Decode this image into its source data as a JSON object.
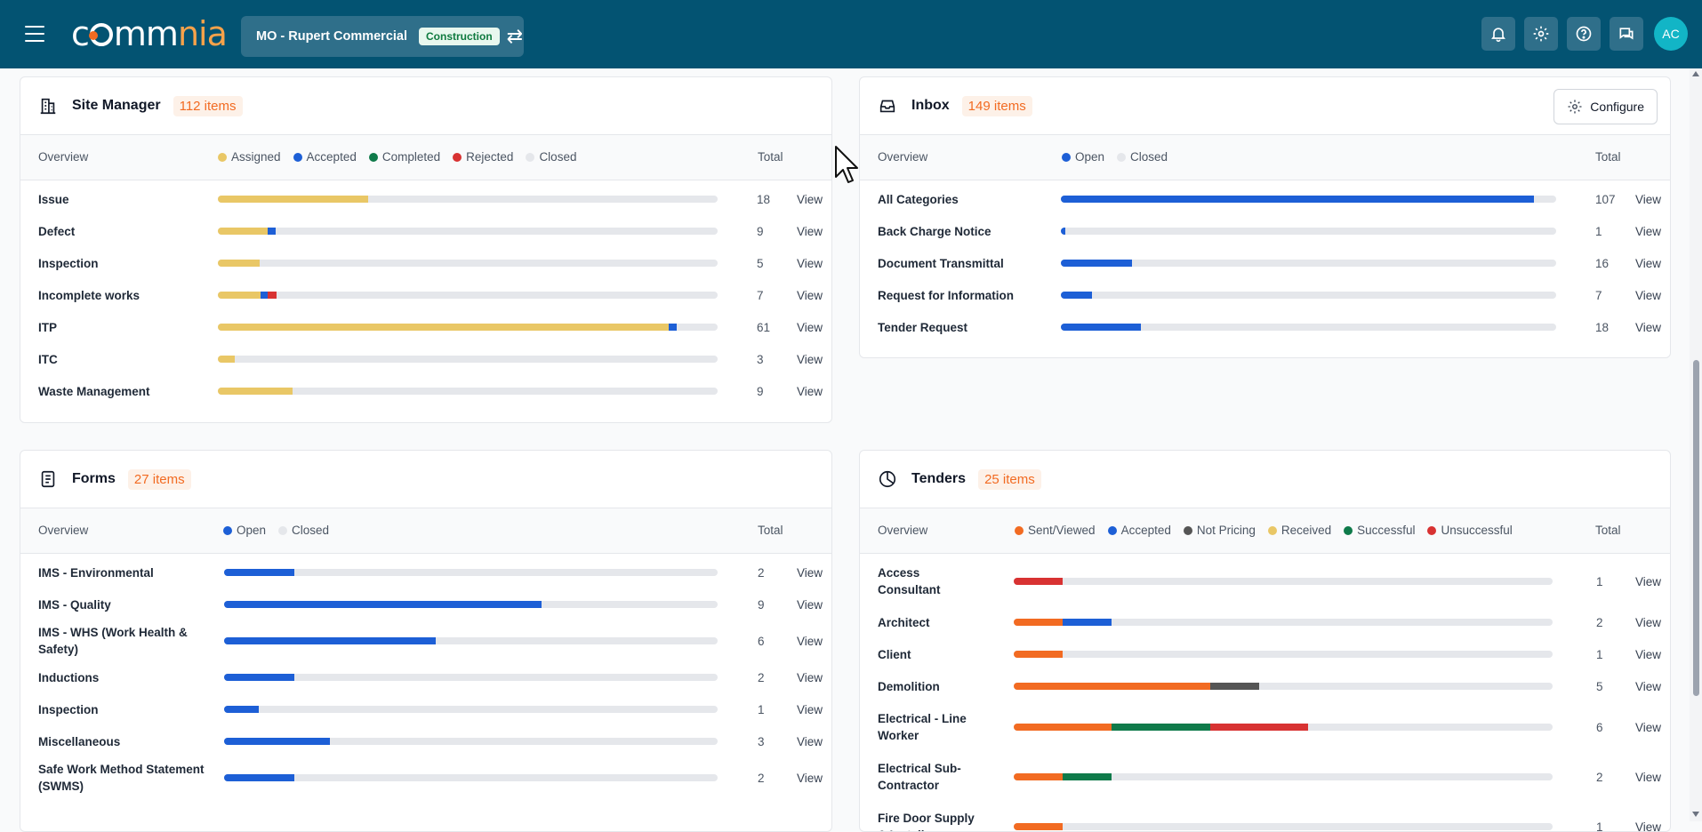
{
  "header": {
    "logo_text": "commnia",
    "project_name": "MO - Rupert Commercial",
    "project_badge": "Construction",
    "avatar_initials": "AC"
  },
  "colors": {
    "topbar": "#035372",
    "orange": "#f26b22",
    "yellow": "#e9c766",
    "blue": "#1d5fd6",
    "green": "#0f7a4a",
    "red": "#d83232",
    "grey": "#e5e7eb",
    "dark_grey": "#555555"
  },
  "site_manager": {
    "title": "Site Manager",
    "count": "112 items",
    "overview_label": "Overview",
    "total_label": "Total",
    "legend": [
      {
        "label": "Assigned",
        "color": "#e9c766"
      },
      {
        "label": "Accepted",
        "color": "#1d5fd6"
      },
      {
        "label": "Completed",
        "color": "#0f7a4a"
      },
      {
        "label": "Rejected",
        "color": "#d83232"
      },
      {
        "label": "Closed",
        "color": "#e5e7eb"
      }
    ],
    "rows": [
      {
        "label": "Issue",
        "total": "18",
        "view": "View",
        "segments": [
          {
            "color": "#e9c766",
            "pct": 30
          }
        ]
      },
      {
        "label": "Defect",
        "total": "9",
        "view": "View",
        "segments": [
          {
            "color": "#e9c766",
            "pct": 10
          },
          {
            "color": "#1d5fd6",
            "pct": 1.5
          }
        ]
      },
      {
        "label": "Inspection",
        "total": "5",
        "view": "View",
        "segments": [
          {
            "color": "#e9c766",
            "pct": 8.3
          }
        ]
      },
      {
        "label": "Incomplete works",
        "total": "7",
        "view": "View",
        "segments": [
          {
            "color": "#e9c766",
            "pct": 8.5
          },
          {
            "color": "#1d5fd6",
            "pct": 1.5
          },
          {
            "color": "#d83232",
            "pct": 1.7
          }
        ]
      },
      {
        "label": "ITP",
        "total": "61",
        "view": "View",
        "segments": [
          {
            "color": "#e9c766",
            "pct": 90.2
          },
          {
            "color": "#1d5fd6",
            "pct": 1.6
          }
        ]
      },
      {
        "label": "ITC",
        "total": "3",
        "view": "View",
        "segments": [
          {
            "color": "#e9c766",
            "pct": 3.4
          }
        ]
      },
      {
        "label": "Waste Management",
        "total": "9",
        "view": "View",
        "segments": [
          {
            "color": "#e9c766",
            "pct": 15
          }
        ]
      }
    ]
  },
  "inbox": {
    "title": "Inbox",
    "count": "149 items",
    "configure_label": "Configure",
    "overview_label": "Overview",
    "total_label": "Total",
    "legend": [
      {
        "label": "Open",
        "color": "#1d5fd6"
      },
      {
        "label": "Closed",
        "color": "#e5e7eb"
      }
    ],
    "rows": [
      {
        "label": "All Categories",
        "total": "107",
        "view": "View",
        "segments": [
          {
            "color": "#1d5fd6",
            "pct": 95.5
          }
        ]
      },
      {
        "label": "Back Charge Notice",
        "total": "1",
        "view": "View",
        "segments": [
          {
            "color": "#1d5fd6",
            "pct": 0.9
          }
        ]
      },
      {
        "label": "Document Transmittal",
        "total": "16",
        "view": "View",
        "segments": [
          {
            "color": "#1d5fd6",
            "pct": 14.4
          }
        ]
      },
      {
        "label": "Request for Information",
        "total": "7",
        "view": "View",
        "segments": [
          {
            "color": "#1d5fd6",
            "pct": 6.3
          }
        ]
      },
      {
        "label": "Tender Request",
        "total": "18",
        "view": "View",
        "segments": [
          {
            "color": "#1d5fd6",
            "pct": 16.2
          }
        ]
      }
    ]
  },
  "forms": {
    "title": "Forms",
    "count": "27 items",
    "overview_label": "Overview",
    "total_label": "Total",
    "legend": [
      {
        "label": "Open",
        "color": "#1d5fd6"
      },
      {
        "label": "Closed",
        "color": "#e5e7eb"
      }
    ],
    "rows": [
      {
        "label": "IMS - Environmental",
        "total": "2",
        "view": "View",
        "segments": [
          {
            "color": "#1d5fd6",
            "pct": 14.3
          }
        ]
      },
      {
        "label": "IMS - Quality",
        "total": "9",
        "view": "View",
        "segments": [
          {
            "color": "#1d5fd6",
            "pct": 64.3
          }
        ]
      },
      {
        "label": "IMS - WHS (Work Health & Safety)",
        "total": "6",
        "view": "View",
        "segments": [
          {
            "color": "#1d5fd6",
            "pct": 42.9
          }
        ]
      },
      {
        "label": "Inductions",
        "total": "2",
        "view": "View",
        "segments": [
          {
            "color": "#1d5fd6",
            "pct": 14.3
          }
        ]
      },
      {
        "label": "Inspection",
        "total": "1",
        "view": "View",
        "segments": [
          {
            "color": "#1d5fd6",
            "pct": 7.1
          }
        ]
      },
      {
        "label": "Miscellaneous",
        "total": "3",
        "view": "View",
        "segments": [
          {
            "color": "#1d5fd6",
            "pct": 21.4
          }
        ]
      },
      {
        "label": "Safe Work Method Statement (SWMS)",
        "total": "2",
        "view": "View",
        "segments": [
          {
            "color": "#1d5fd6",
            "pct": 14.3
          }
        ]
      }
    ]
  },
  "tenders": {
    "title": "Tenders",
    "count": "25 items",
    "overview_label": "Overview",
    "total_label": "Total",
    "legend": [
      {
        "label": "Sent/Viewed",
        "color": "#f26b22"
      },
      {
        "label": "Accepted",
        "color": "#1d5fd6"
      },
      {
        "label": "Not Pricing",
        "color": "#555555"
      },
      {
        "label": "Received",
        "color": "#e9c766"
      },
      {
        "label": "Successful",
        "color": "#0f7a4a"
      },
      {
        "label": "Unsuccessful",
        "color": "#d83232"
      }
    ],
    "rows": [
      {
        "label": "Access Consultant",
        "total": "1",
        "view": "View",
        "segments": [
          {
            "color": "#d83232",
            "pct": 9.1
          }
        ]
      },
      {
        "label": "Architect",
        "total": "2",
        "view": "View",
        "segments": [
          {
            "color": "#f26b22",
            "pct": 9.1
          },
          {
            "color": "#1d5fd6",
            "pct": 9.1
          }
        ]
      },
      {
        "label": "Client",
        "total": "1",
        "view": "View",
        "segments": [
          {
            "color": "#f26b22",
            "pct": 9.1
          }
        ]
      },
      {
        "label": "Demolition",
        "total": "5",
        "view": "View",
        "segments": [
          {
            "color": "#f26b22",
            "pct": 36.4
          },
          {
            "color": "#555555",
            "pct": 9.1
          }
        ]
      },
      {
        "label": "Electrical - Line Worker",
        "total": "6",
        "view": "View",
        "segments": [
          {
            "color": "#f26b22",
            "pct": 18.2
          },
          {
            "color": "#0f7a4a",
            "pct": 18.2
          },
          {
            "color": "#d83232",
            "pct": 18.2
          }
        ]
      },
      {
        "label": "Electrical Sub-Contractor",
        "total": "2",
        "view": "View",
        "segments": [
          {
            "color": "#f26b22",
            "pct": 9.1
          },
          {
            "color": "#0f7a4a",
            "pct": 9.1
          }
        ]
      },
      {
        "label": "Fire Door Supply & Install",
        "total": "1",
        "view": "View",
        "segments": [
          {
            "color": "#f26b22",
            "pct": 9.1
          }
        ]
      }
    ]
  }
}
